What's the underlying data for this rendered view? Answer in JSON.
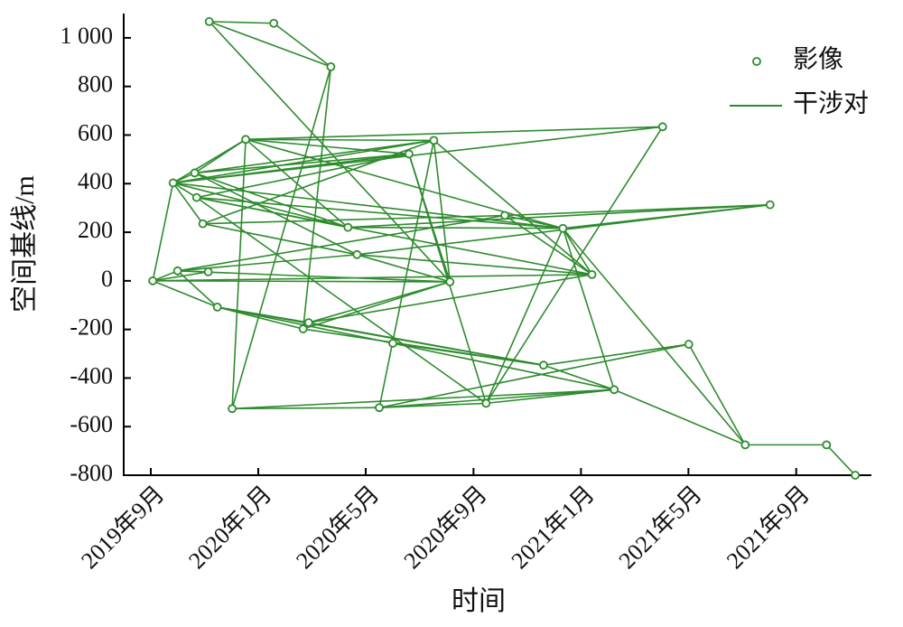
{
  "chart_data": {
    "type": "network",
    "x_label": "时间",
    "y_label": "空间基线/m",
    "xlim": [
      2019.583,
      2021.9
    ],
    "xticks": [
      {
        "value": 2019.667,
        "label": "2019年9月"
      },
      {
        "value": 2020.0,
        "label": "2020年1月"
      },
      {
        "value": 2020.333,
        "label": "2020年5月"
      },
      {
        "value": 2020.667,
        "label": "2020年9月"
      },
      {
        "value": 2021.0,
        "label": "2021年1月"
      },
      {
        "value": 2021.333,
        "label": "2021年5月"
      },
      {
        "value": 2021.667,
        "label": "2021年9月"
      }
    ],
    "ylim": [
      -800,
      1100
    ],
    "yticks": [
      -800,
      -600,
      -400,
      -200,
      0,
      200,
      400,
      600,
      800,
      {
        "value": 1000,
        "label": "1 000"
      }
    ],
    "legend": "upper right",
    "series": [
      {
        "name": "影像",
        "color": "#2e8b2e",
        "x": [
          2019.673,
          2019.736,
          2019.75,
          2019.803,
          2019.809,
          2019.828,
          2019.848,
          2019.845,
          2019.873,
          2019.919,
          2019.961,
          2020.048,
          2020.139,
          2020.156,
          2020.225,
          2020.278,
          2020.306,
          2020.375,
          2020.417,
          2020.467,
          2020.544,
          2020.594,
          2020.706,
          2020.764,
          2020.884,
          2020.944,
          2021.034,
          2021.103,
          2021.253,
          2021.334,
          2021.509,
          2021.586,
          2021.761,
          2021.85
        ],
        "values": [
          0,
          403,
          41,
          444,
          343,
          235,
          1067,
          37,
          -108,
          -526,
          582,
          1060,
          -198,
          -172,
          881,
          220,
          108,
          -522,
          -257,
          522,
          578,
          -4,
          -504,
          269,
          -347,
          216,
          26,
          -448,
          634,
          -261,
          -675,
          313,
          -675,
          -800
        ]
      },
      {
        "name": "干涉对",
        "color": "#2e8b2e",
        "pairs": [
          [
            0,
            1
          ],
          [
            0,
            2
          ],
          [
            0,
            7
          ],
          [
            0,
            21
          ],
          [
            0,
            26
          ],
          [
            0,
            8
          ],
          [
            1,
            3
          ],
          [
            1,
            4
          ],
          [
            1,
            5
          ],
          [
            1,
            10
          ],
          [
            1,
            19
          ],
          [
            1,
            20
          ],
          [
            1,
            15
          ],
          [
            1,
            28
          ],
          [
            1,
            25
          ],
          [
            6,
            11
          ],
          [
            6,
            14
          ],
          [
            6,
            21
          ],
          [
            11,
            14
          ],
          [
            14,
            9
          ],
          [
            14,
            12
          ],
          [
            10,
            20
          ],
          [
            10,
            19
          ],
          [
            10,
            28
          ],
          [
            10,
            15
          ],
          [
            10,
            25
          ],
          [
            3,
            20
          ],
          [
            3,
            19
          ],
          [
            3,
            15
          ],
          [
            3,
            10
          ],
          [
            3,
            16
          ],
          [
            4,
            19
          ],
          [
            4,
            15
          ],
          [
            4,
            25
          ],
          [
            4,
            26
          ],
          [
            4,
            22
          ],
          [
            5,
            16
          ],
          [
            5,
            20
          ],
          [
            5,
            23
          ],
          [
            2,
            8
          ],
          [
            2,
            16
          ],
          [
            2,
            21
          ],
          [
            2,
            23
          ],
          [
            2,
            7
          ],
          [
            8,
            12
          ],
          [
            8,
            18
          ],
          [
            8,
            24
          ],
          [
            8,
            13
          ],
          [
            9,
            17
          ],
          [
            9,
            27
          ],
          [
            9,
            10
          ],
          [
            12,
            21
          ],
          [
            12,
            24
          ],
          [
            13,
            21
          ],
          [
            13,
            26
          ],
          [
            13,
            24
          ],
          [
            17,
            27
          ],
          [
            17,
            29
          ],
          [
            17,
            22
          ],
          [
            17,
            20
          ],
          [
            18,
            24
          ],
          [
            18,
            27
          ],
          [
            19,
            22
          ],
          [
            19,
            21
          ],
          [
            20,
            21
          ],
          [
            20,
            26
          ],
          [
            21,
            16
          ],
          [
            22,
            27
          ],
          [
            22,
            28
          ],
          [
            22,
            25
          ],
          [
            23,
            25
          ],
          [
            23,
            26
          ],
          [
            23,
            31
          ],
          [
            24,
            27
          ],
          [
            24,
            29
          ],
          [
            25,
            30
          ],
          [
            25,
            26
          ],
          [
            25,
            31
          ],
          [
            25,
            27
          ],
          [
            27,
            30
          ],
          [
            29,
            30
          ],
          [
            30,
            32
          ],
          [
            32,
            33
          ],
          [
            16,
            26
          ],
          [
            15,
            25
          ],
          [
            15,
            31
          ],
          [
            16,
            31
          ]
        ]
      }
    ]
  }
}
